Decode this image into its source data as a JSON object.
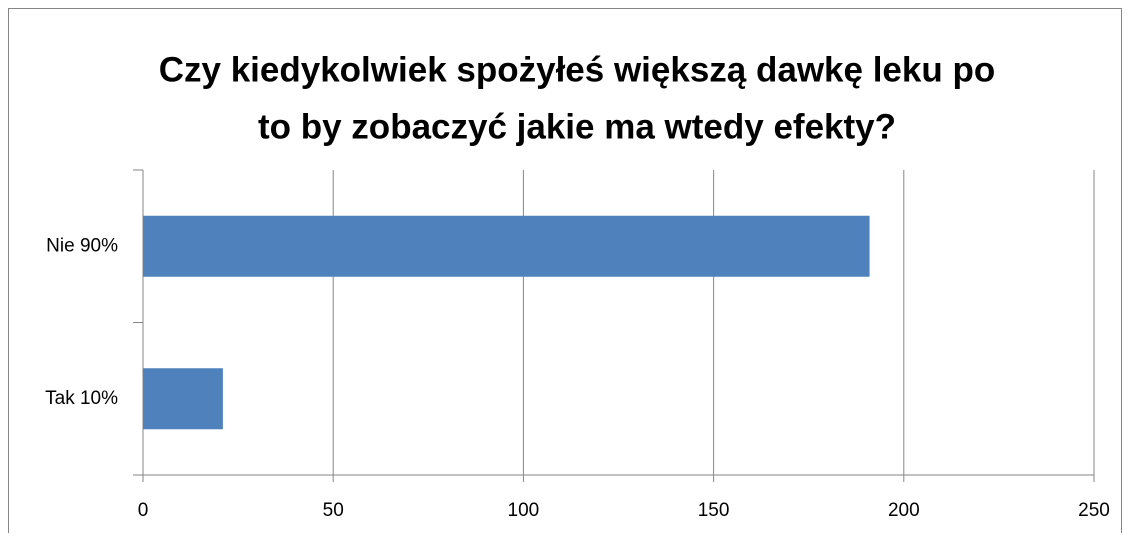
{
  "chart_data": {
    "type": "hbar",
    "title": [
      "Czy kiedykolwiek spożyłeś większą dawkę leku po",
      "to by zobaczyć jakie ma wtedy efekty?"
    ],
    "categories": [
      "Nie 90%",
      "Tak 10%"
    ],
    "values": [
      191,
      21
    ],
    "color": "#4f81bd",
    "xlim": [
      0,
      250
    ],
    "xticks": [
      0,
      50,
      100,
      150,
      200,
      250
    ],
    "grid": true
  }
}
